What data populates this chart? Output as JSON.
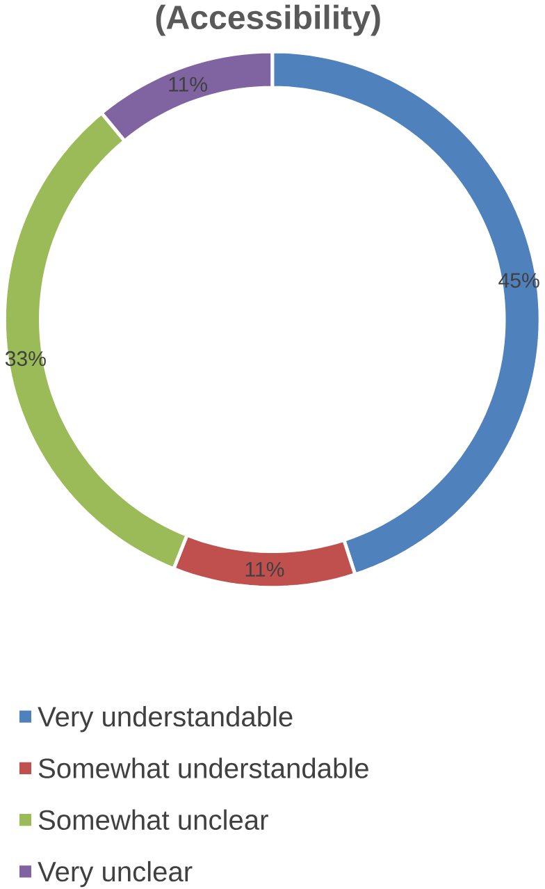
{
  "chart_data": {
    "type": "donut",
    "title": "(Accessibility)",
    "categories": [
      "Very understandable",
      "Somewhat understandable",
      "Somewhat unclear",
      "Very unclear"
    ],
    "values": [
      45,
      11,
      33,
      11
    ],
    "colors": [
      "#4f81bd",
      "#c0504d",
      "#9bbb59",
      "#8064a2"
    ],
    "value_labels": [
      "45%",
      "11%",
      "33%",
      "11%"
    ],
    "legend": "bottom"
  }
}
